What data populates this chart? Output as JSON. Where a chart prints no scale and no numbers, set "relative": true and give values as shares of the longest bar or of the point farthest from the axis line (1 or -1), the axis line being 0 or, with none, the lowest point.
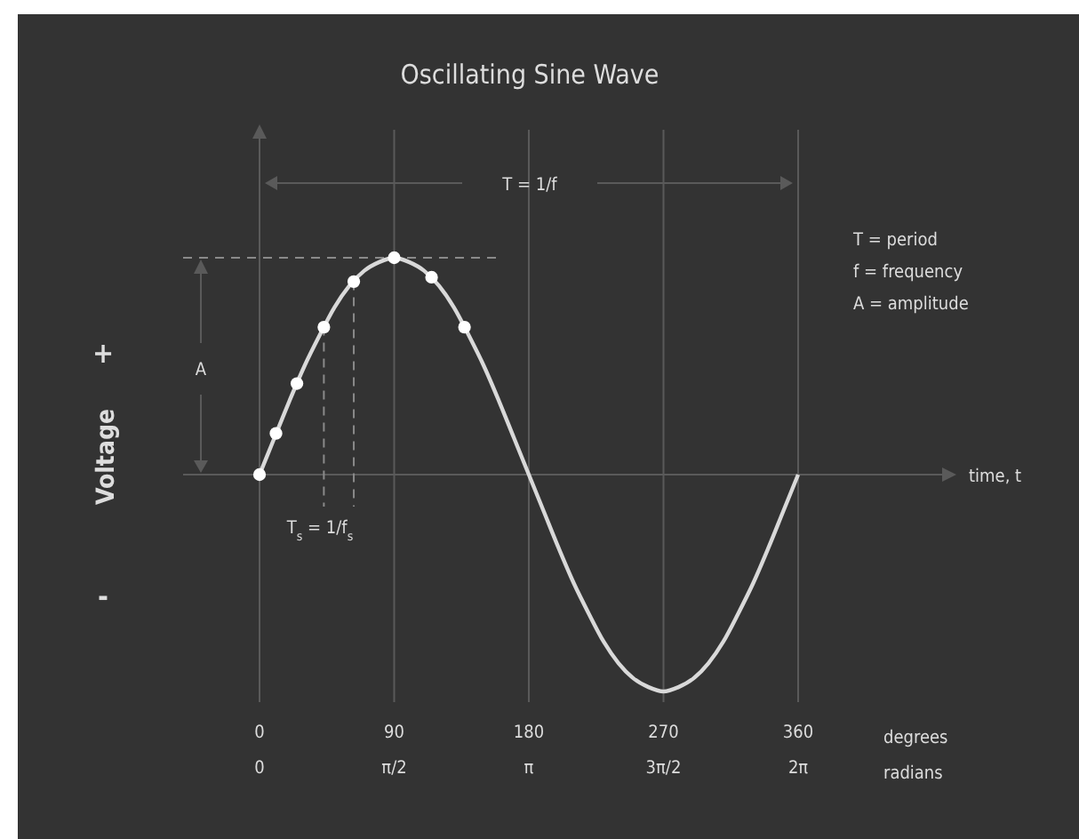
{
  "chart_data": {
    "type": "line",
    "title": "Oscillating Sine Wave",
    "relative": true,
    "grid": "x",
    "xlim": [
      0,
      360
    ],
    "xticks": [
      0,
      90,
      180,
      270,
      360
    ],
    "x2lim": [
      0,
      6.2832
    ],
    "x2ticks": [
      0,
      {
        "value": 1.5708,
        "label": "π/2"
      },
      {
        "value": 3.1416,
        "label": "π"
      },
      {
        "value": 4.7124,
        "label": "3π/2"
      },
      {
        "value": 6.2832,
        "label": "2π"
      }
    ],
    "series": [
      {
        "type": "line",
        "color": "#d9d9d9",
        "marker": "none",
        "line_style": "solid",
        "x": [
          0,
          10,
          20,
          30,
          40,
          50,
          60,
          70,
          80,
          90,
          100,
          110,
          120,
          130,
          140,
          150,
          160,
          170,
          180,
          190,
          200,
          210,
          220,
          230,
          240,
          250,
          260,
          270,
          280,
          290,
          300,
          310,
          320,
          330,
          340,
          350,
          360
        ],
        "values": [
          0,
          0.17,
          0.34,
          0.5,
          0.64,
          0.77,
          0.87,
          0.94,
          0.98,
          1,
          0.98,
          0.94,
          0.87,
          0.77,
          0.64,
          0.5,
          0.34,
          0.17,
          0,
          -0.17,
          -0.34,
          -0.5,
          -0.64,
          -0.77,
          -0.87,
          -0.94,
          -0.98,
          -1,
          -0.98,
          -0.94,
          -0.87,
          -0.77,
          -0.64,
          -0.5,
          -0.34,
          -0.17,
          0
        ]
      },
      {
        "type": "scatter",
        "color": "#ffffff",
        "marker": "circle",
        "x": [
          0,
          11,
          25,
          43,
          63,
          90,
          115,
          137
        ],
        "values": [
          0,
          0.19,
          0.42,
          0.68,
          0.89,
          1,
          0.91,
          0.68
        ]
      }
    ],
    "ref_lines": [
      {
        "axis": "y",
        "value": 1,
        "color": "#8a8a8a",
        "line_style": "dashed"
      },
      {
        "axis": "x",
        "value": 43,
        "color": "#8a8a8a",
        "line_style": "dashed"
      },
      {
        "axis": "x",
        "value": 63,
        "color": "#8a8a8a",
        "line_style": "dashed"
      }
    ],
    "annotations": [
      "T = 1/f",
      "T = period",
      "f = frequency",
      "A = amplitude",
      "A",
      "T$_{s}$ = 1/f$_{s}$",
      "+",
      "-",
      "degrees",
      "radians",
      "time, t",
      "Voltage"
    ]
  }
}
